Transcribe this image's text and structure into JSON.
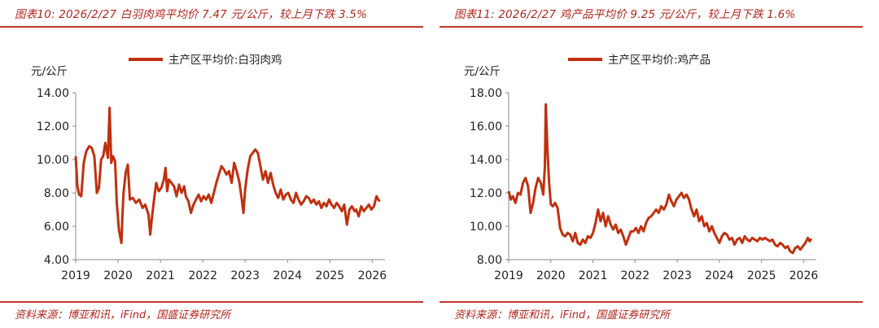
{
  "chart_data": [
    {
      "type": "line",
      "title": "图表10:  2026/2/27 白羽肉鸡平均价 7.47 元/公斤，较上月下跌 3.5%",
      "ylabel": "元/公斤",
      "ylim": [
        4,
        14
      ],
      "yticks": [
        "14.00",
        "12.00",
        "10.00",
        "8.00",
        "6.00",
        "4.00"
      ],
      "xlim": [
        2019,
        2026.3
      ],
      "xticks": [
        "2019",
        "2020",
        "2021",
        "2022",
        "2023",
        "2024",
        "2025",
        "2026"
      ],
      "legend": "top-center",
      "grid": false,
      "source": "资料来源：博亚和讯，iFind，国盛证券研究所",
      "series": [
        {
          "name": "主产区平均价:白羽肉鸡",
          "color": "#c0300f",
          "x": [
            2019.0,
            2019.04,
            2019.08,
            2019.13,
            2019.19,
            2019.25,
            2019.32,
            2019.38,
            2019.44,
            2019.5,
            2019.55,
            2019.6,
            2019.65,
            2019.7,
            2019.76,
            2019.8,
            2019.84,
            2019.88,
            2019.93,
            2019.97,
            2020.02,
            2020.08,
            2020.1,
            2020.13,
            2020.18,
            2020.23,
            2020.28,
            2020.35,
            2020.42,
            2020.5,
            2020.58,
            2020.64,
            2020.72,
            2020.76,
            2020.79,
            2020.84,
            2020.9,
            2020.96,
            2021.02,
            2021.08,
            2021.12,
            2021.16,
            2021.2,
            2021.26,
            2021.32,
            2021.38,
            2021.44,
            2021.5,
            2021.56,
            2021.6,
            2021.66,
            2021.72,
            2021.78,
            2021.84,
            2021.9,
            2021.96,
            2022.02,
            2022.08,
            2022.14,
            2022.2,
            2022.26,
            2022.32,
            2022.38,
            2022.44,
            2022.5,
            2022.56,
            2022.62,
            2022.68,
            2022.74,
            2022.8,
            2022.86,
            2022.92,
            2022.96,
            2023.0,
            2023.06,
            2023.12,
            2023.18,
            2023.24,
            2023.3,
            2023.36,
            2023.42,
            2023.48,
            2023.54,
            2023.6,
            2023.66,
            2023.72,
            2023.78,
            2023.84,
            2023.9,
            2023.96,
            2024.02,
            2024.08,
            2024.14,
            2024.2,
            2024.26,
            2024.32,
            2024.38,
            2024.44,
            2024.5,
            2024.56,
            2024.62,
            2024.68,
            2024.74,
            2024.8,
            2024.86,
            2024.92,
            2024.98,
            2025.04,
            2025.1,
            2025.16,
            2025.22,
            2025.28,
            2025.34,
            2025.4,
            2025.46,
            2025.52,
            2025.58,
            2025.62,
            2025.68,
            2025.74,
            2025.8,
            2025.86,
            2025.92,
            2025.98,
            2026.04,
            2026.1,
            2026.14,
            2026.18
          ],
          "values": [
            10.2,
            8.4,
            7.9,
            7.8,
            9.8,
            10.5,
            10.8,
            10.7,
            10.2,
            8.0,
            8.3,
            10.0,
            10.2,
            11.0,
            10.1,
            13.1,
            9.8,
            10.2,
            9.9,
            7.4,
            5.8,
            5.0,
            6.5,
            8.0,
            9.2,
            9.7,
            7.6,
            7.7,
            7.4,
            7.6,
            7.1,
            7.3,
            6.7,
            5.5,
            6.3,
            7.4,
            8.6,
            8.1,
            8.3,
            8.8,
            9.5,
            8.1,
            8.8,
            8.6,
            8.4,
            7.8,
            8.5,
            8.0,
            8.4,
            7.8,
            7.5,
            6.8,
            7.3,
            7.6,
            7.9,
            7.5,
            7.8,
            7.6,
            7.9,
            7.4,
            8.0,
            8.6,
            9.1,
            9.6,
            9.4,
            9.1,
            9.3,
            8.6,
            9.8,
            9.3,
            8.7,
            7.6,
            6.8,
            8.2,
            9.4,
            10.2,
            10.4,
            10.6,
            10.4,
            9.6,
            8.8,
            9.3,
            8.6,
            9.2,
            8.5,
            8.0,
            7.7,
            8.2,
            7.6,
            7.9,
            8.0,
            7.6,
            7.4,
            8.0,
            7.6,
            7.3,
            7.5,
            7.8,
            7.7,
            7.4,
            7.6,
            7.3,
            7.5,
            7.1,
            7.4,
            7.2,
            7.6,
            7.3,
            7.1,
            7.4,
            7.2,
            6.9,
            7.3,
            6.1,
            7.0,
            7.2,
            6.9,
            7.0,
            6.6,
            7.2,
            6.9,
            7.1,
            7.3,
            7.0,
            7.2,
            7.8,
            7.6,
            7.5
          ]
        }
      ]
    },
    {
      "type": "line",
      "title": "图表11:  2026/2/27 鸡产品平均价 9.25 元/公斤，较上月下跌 1.6%",
      "ylabel": "元/公斤",
      "ylim": [
        8,
        18
      ],
      "yticks": [
        "18.00",
        "16.00",
        "14.00",
        "12.00",
        "10.00",
        "8.00"
      ],
      "xlim": [
        2019,
        2026.3
      ],
      "xticks": [
        "2019",
        "2020",
        "2021",
        "2022",
        "2023",
        "2024",
        "2025",
        "2026"
      ],
      "legend": "top-center",
      "grid": false,
      "source": "资料来源：博亚和讯，iFind，国盛证券研究所",
      "series": [
        {
          "name": "主产区平均价:鸡产品",
          "color": "#c0300f",
          "x": [
            2019.0,
            2019.05,
            2019.1,
            2019.16,
            2019.22,
            2019.28,
            2019.34,
            2019.4,
            2019.46,
            2019.52,
            2019.58,
            2019.64,
            2019.7,
            2019.76,
            2019.82,
            2019.86,
            2019.88,
            2019.92,
            2019.96,
            2020.0,
            2020.05,
            2020.1,
            2020.16,
            2020.22,
            2020.28,
            2020.34,
            2020.4,
            2020.46,
            2020.52,
            2020.58,
            2020.64,
            2020.7,
            2020.76,
            2020.82,
            2020.88,
            2020.94,
            2021.0,
            2021.06,
            2021.12,
            2021.18,
            2021.24,
            2021.3,
            2021.36,
            2021.42,
            2021.48,
            2021.54,
            2021.6,
            2021.66,
            2021.72,
            2021.78,
            2021.84,
            2021.9,
            2021.96,
            2022.02,
            2022.08,
            2022.14,
            2022.2,
            2022.26,
            2022.32,
            2022.38,
            2022.44,
            2022.5,
            2022.56,
            2022.62,
            2022.68,
            2022.74,
            2022.8,
            2022.86,
            2022.92,
            2022.98,
            2023.04,
            2023.1,
            2023.16,
            2023.22,
            2023.28,
            2023.34,
            2023.4,
            2023.46,
            2023.52,
            2023.58,
            2023.64,
            2023.7,
            2023.76,
            2023.82,
            2023.88,
            2023.94,
            2024.0,
            2024.06,
            2024.12,
            2024.18,
            2024.24,
            2024.3,
            2024.36,
            2024.42,
            2024.48,
            2024.54,
            2024.6,
            2024.66,
            2024.72,
            2024.78,
            2024.84,
            2024.9,
            2024.96,
            2025.02,
            2025.08,
            2025.14,
            2025.2,
            2025.26,
            2025.32,
            2025.38,
            2025.44,
            2025.5,
            2025.56,
            2025.62,
            2025.68,
            2025.74,
            2025.8,
            2025.86,
            2025.92,
            2025.98,
            2026.04,
            2026.1,
            2026.14,
            2026.18
          ],
          "values": [
            12.1,
            11.6,
            11.8,
            11.4,
            12.0,
            11.9,
            12.6,
            12.9,
            12.4,
            10.8,
            11.4,
            12.3,
            12.9,
            12.6,
            11.9,
            13.6,
            17.3,
            14.6,
            12.6,
            11.3,
            11.2,
            11.4,
            11.1,
            9.9,
            9.5,
            9.4,
            9.6,
            9.5,
            9.1,
            9.6,
            9.0,
            8.9,
            9.2,
            9.0,
            9.4,
            9.3,
            9.6,
            10.2,
            11.0,
            10.3,
            10.8,
            10.0,
            10.6,
            10.1,
            9.8,
            10.1,
            9.6,
            9.8,
            9.4,
            8.9,
            9.3,
            9.7,
            9.7,
            9.9,
            9.6,
            10.0,
            9.7,
            10.2,
            10.5,
            10.6,
            10.8,
            11.0,
            10.8,
            11.2,
            11.0,
            11.3,
            11.9,
            11.5,
            11.2,
            11.6,
            11.8,
            12.0,
            11.7,
            11.9,
            11.6,
            11.0,
            10.6,
            11.0,
            10.3,
            10.6,
            10.0,
            10.2,
            9.7,
            10.0,
            9.6,
            9.3,
            9.0,
            9.4,
            9.6,
            9.5,
            9.2,
            9.3,
            8.9,
            9.2,
            9.3,
            9.0,
            9.4,
            9.2,
            9.1,
            9.3,
            9.2,
            9.1,
            9.3,
            9.2,
            9.3,
            9.2,
            9.1,
            9.2,
            8.9,
            8.8,
            9.0,
            8.9,
            8.7,
            8.8,
            8.5,
            8.4,
            8.7,
            8.8,
            8.6,
            8.8,
            9.0,
            9.3,
            9.1,
            9.25
          ]
        }
      ]
    }
  ]
}
